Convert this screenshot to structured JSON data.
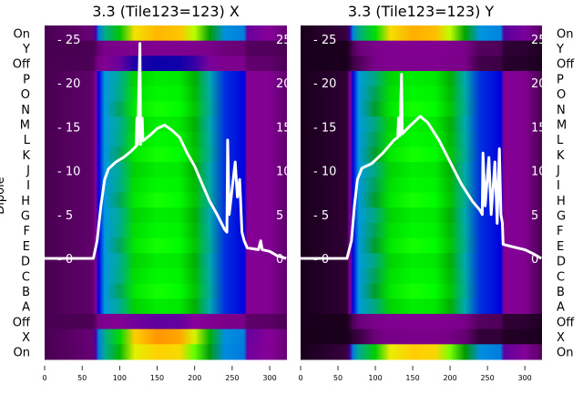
{
  "chart_data": [
    {
      "type": "heatmap",
      "title": "3.3 (Tile123=123) X",
      "ylabel": "Dipole",
      "row_labels": [
        "On",
        "Y",
        "Off",
        "P",
        "O",
        "N",
        "M",
        "L",
        "K",
        "J",
        "I",
        "H",
        "G",
        "F",
        "E",
        "D",
        "C",
        "B",
        "A",
        "Off",
        "X",
        "On"
      ],
      "row_gain": [
        1.35,
        0.08,
        0.18,
        1,
        1,
        1,
        1,
        1,
        1,
        1,
        1,
        1,
        1,
        1,
        1,
        1,
        1,
        1,
        1,
        0.15,
        1.35,
        1.3
      ],
      "background_level": 0.03,
      "spectrum_profile": [
        [
          0,
          0.03
        ],
        [
          64,
          0.04
        ],
        [
          68,
          0.1
        ],
        [
          72,
          0.2
        ],
        [
          80,
          0.3
        ],
        [
          100,
          0.4
        ],
        [
          120,
          0.55
        ],
        [
          150,
          0.59
        ],
        [
          180,
          0.58
        ],
        [
          200,
          0.5
        ],
        [
          220,
          0.36
        ],
        [
          240,
          0.22
        ],
        [
          266,
          0.2
        ],
        [
          270,
          0.09
        ],
        [
          300,
          0.08
        ],
        [
          323,
          0.04
        ]
      ],
      "x_ticks": [
        "0",
        "50",
        "100",
        "150",
        "200",
        "250",
        "300"
      ],
      "xlim": [
        0,
        323
      ],
      "line_ticks": [
        "0",
        "5",
        "10",
        "15",
        "20",
        "25"
      ],
      "line_ylim": [
        0,
        25
      ],
      "line": [
        [
          0,
          0
        ],
        [
          65,
          0
        ],
        [
          70,
          2
        ],
        [
          75,
          6
        ],
        [
          80,
          9
        ],
        [
          85,
          10.2
        ],
        [
          95,
          11
        ],
        [
          105,
          11.5
        ],
        [
          115,
          12.2
        ],
        [
          122,
          12.8
        ],
        [
          123,
          16
        ],
        [
          124,
          13
        ],
        [
          127,
          24.5
        ],
        [
          128,
          13
        ],
        [
          130,
          16
        ],
        [
          131,
          13.4
        ],
        [
          140,
          14
        ],
        [
          150,
          14.8
        ],
        [
          160,
          15.2
        ],
        [
          170,
          14.6
        ],
        [
          180,
          13.8
        ],
        [
          190,
          12
        ],
        [
          200,
          10.5
        ],
        [
          210,
          8.5
        ],
        [
          220,
          6.5
        ],
        [
          230,
          5
        ],
        [
          240,
          3.3
        ],
        [
          243,
          3
        ],
        [
          244,
          13.5
        ],
        [
          246,
          5
        ],
        [
          250,
          8
        ],
        [
          254,
          11
        ],
        [
          257,
          7
        ],
        [
          260,
          9
        ],
        [
          263,
          3
        ],
        [
          266,
          2
        ],
        [
          270,
          1.2
        ],
        [
          285,
          1
        ],
        [
          288,
          2
        ],
        [
          290,
          1
        ],
        [
          300,
          0.8
        ],
        [
          310,
          0.3
        ],
        [
          322,
          0
        ]
      ]
    },
    {
      "type": "heatmap",
      "title": "3.3 (Tile123=123) Y",
      "ylabel": "",
      "row_labels": [
        "On",
        "Y",
        "Off",
        "P",
        "O",
        "N",
        "M",
        "L",
        "K",
        "J",
        "I",
        "H",
        "G",
        "F",
        "E",
        "D",
        "C",
        "B",
        "A",
        "Off",
        "X",
        "On"
      ],
      "row_gain": [
        1.35,
        0.12,
        0.08,
        1,
        1,
        1,
        1,
        1,
        1,
        1,
        1,
        1,
        1,
        1,
        1,
        1,
        1,
        1,
        1,
        0.12,
        0.05,
        1.3
      ],
      "background_level": 0.01,
      "spectrum_profile": [
        [
          0,
          0.01
        ],
        [
          62,
          0.02
        ],
        [
          66,
          0.1
        ],
        [
          70,
          0.2
        ],
        [
          78,
          0.3
        ],
        [
          100,
          0.42
        ],
        [
          120,
          0.55
        ],
        [
          150,
          0.59
        ],
        [
          180,
          0.58
        ],
        [
          200,
          0.5
        ],
        [
          220,
          0.36
        ],
        [
          240,
          0.22
        ],
        [
          268,
          0.2
        ],
        [
          272,
          0.09
        ],
        [
          300,
          0.08
        ],
        [
          323,
          0.03
        ]
      ],
      "x_ticks": [
        "0",
        "50",
        "100",
        "150",
        "200",
        "250",
        "300"
      ],
      "xlim": [
        0,
        323
      ],
      "line_ticks": [
        "0",
        "5",
        "10",
        "15",
        "20",
        "25"
      ],
      "line_ylim": [
        0,
        25
      ],
      "line": [
        [
          0,
          0
        ],
        [
          62,
          0
        ],
        [
          68,
          2
        ],
        [
          72,
          6
        ],
        [
          76,
          9
        ],
        [
          82,
          10.3
        ],
        [
          95,
          10.8
        ],
        [
          110,
          12
        ],
        [
          125,
          13.5
        ],
        [
          130,
          13.8
        ],
        [
          131,
          16
        ],
        [
          133,
          14
        ],
        [
          135,
          21
        ],
        [
          136,
          14.2
        ],
        [
          145,
          15
        ],
        [
          160,
          16.2
        ],
        [
          170,
          15.5
        ],
        [
          185,
          13.5
        ],
        [
          200,
          11
        ],
        [
          215,
          8.5
        ],
        [
          230,
          6.5
        ],
        [
          240,
          5.5
        ],
        [
          243,
          5
        ],
        [
          244,
          12
        ],
        [
          247,
          6
        ],
        [
          252,
          11.5
        ],
        [
          255,
          5
        ],
        [
          260,
          11
        ],
        [
          263,
          4
        ],
        [
          266,
          12.5
        ],
        [
          268,
          5
        ],
        [
          270,
          4
        ],
        [
          271,
          1.6
        ],
        [
          285,
          1.3
        ],
        [
          300,
          1
        ],
        [
          312,
          0.5
        ],
        [
          322,
          0
        ]
      ]
    }
  ]
}
